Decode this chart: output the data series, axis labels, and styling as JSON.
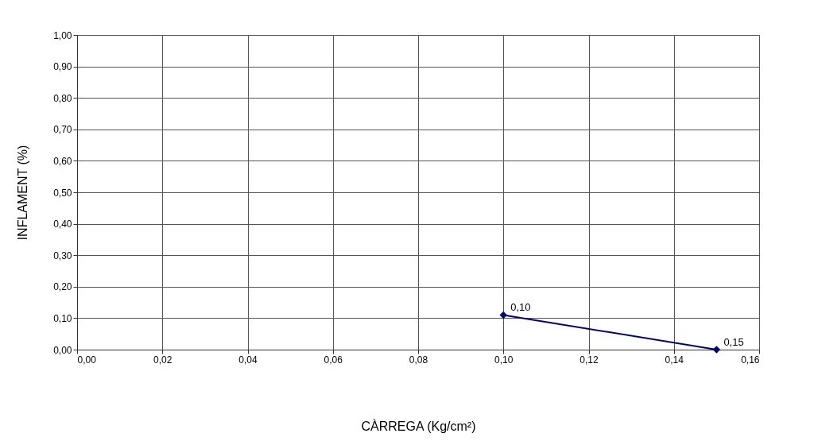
{
  "chart_data": {
    "type": "line",
    "xlabel": "CÀRREGA (Kg/cm²)",
    "ylabel": "INFLAMENT (%)",
    "x": [
      0.1,
      0.15
    ],
    "series": [
      {
        "color": "#000080",
        "values": [
          0.11,
          0.0
        ]
      }
    ],
    "xlim": [
      0,
      0.16
    ],
    "xticks": [
      {
        "value": 0,
        "label": "0,00"
      },
      {
        "value": 0.02,
        "label": "0,02"
      },
      {
        "value": 0.04,
        "label": "0,04"
      },
      {
        "value": 0.06,
        "label": "0,06"
      },
      {
        "value": 0.08,
        "label": "0,08"
      },
      {
        "value": 0.1,
        "label": "0,10"
      },
      {
        "value": 0.12,
        "label": "0,12"
      },
      {
        "value": 0.14,
        "label": "0,14"
      },
      {
        "value": 0.16,
        "label": "0,16"
      }
    ],
    "ylim": [
      0,
      1
    ],
    "yticks": [
      {
        "value": 0,
        "label": "0,00"
      },
      {
        "value": 0.1,
        "label": "0,10"
      },
      {
        "value": 0.2,
        "label": "0,20"
      },
      {
        "value": 0.3,
        "label": "0,30"
      },
      {
        "value": 0.4,
        "label": "0,40"
      },
      {
        "value": 0.5,
        "label": "0,50"
      },
      {
        "value": 0.6,
        "label": "0,60"
      },
      {
        "value": 0.7,
        "label": "0,70"
      },
      {
        "value": 0.8,
        "label": "0,80"
      },
      {
        "value": 0.9,
        "label": "0,90"
      },
      {
        "value": 1.0,
        "label": "1,00"
      }
    ],
    "annotations": [
      {
        "text": "0,10",
        "x": 0.1,
        "y": 0.11
      },
      {
        "text": "0,15",
        "x": 0.15,
        "y": 0.0
      }
    ],
    "grid": true,
    "marker": "diamond",
    "line_style": "solid"
  }
}
